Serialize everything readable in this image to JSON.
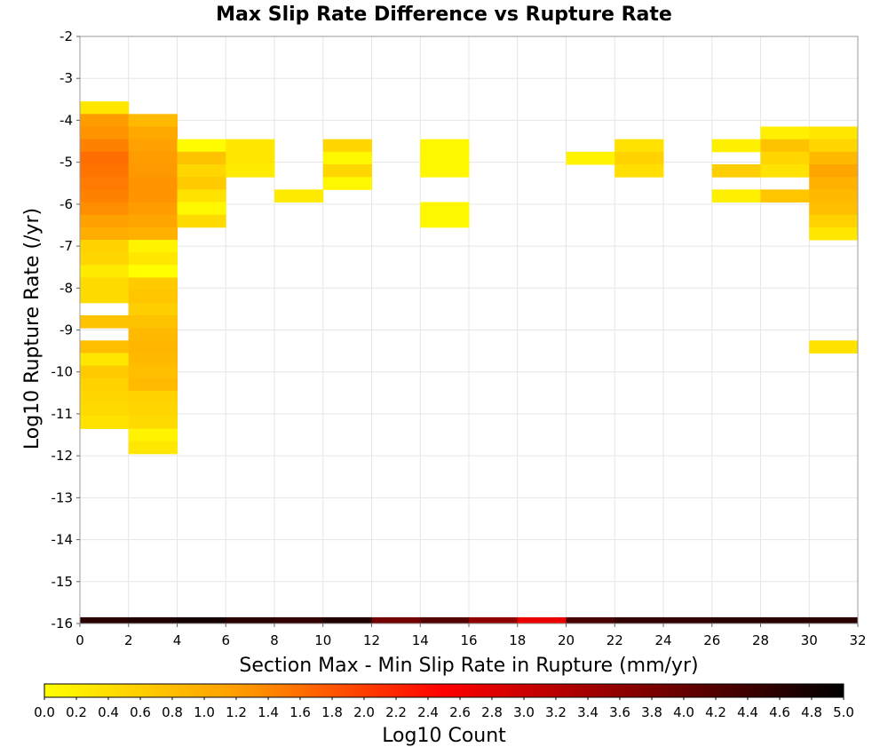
{
  "chart_data": {
    "type": "heatmap",
    "title": "Max Slip Rate Difference vs Rupture Rate",
    "xlabel": "Section Max - Min Slip Rate in Rupture (mm/yr)",
    "ylabel": "Log10 Rupture Rate (/yr)",
    "xlim": [
      0,
      32
    ],
    "ylim": [
      -16,
      -2
    ],
    "x_ticks": [
      "0",
      "2",
      "4",
      "6",
      "8",
      "10",
      "12",
      "14",
      "16",
      "18",
      "20",
      "22",
      "24",
      "26",
      "28",
      "30",
      "32"
    ],
    "y_ticks": [
      "-16",
      "-15",
      "-14",
      "-13",
      "-12",
      "-11",
      "-10",
      "-9",
      "-8",
      "-7",
      "-6",
      "-5",
      "-4",
      "-3",
      "-2"
    ],
    "x_bin_width": 2,
    "y_bin_height": 0.3,
    "grid": true,
    "colorbar": {
      "label": "Log10 Count",
      "min": 0,
      "max": 5,
      "ticks": [
        "0.0",
        "0.2",
        "0.4",
        "0.6",
        "0.8",
        "1.0",
        "1.2",
        "1.4",
        "1.6",
        "1.8",
        "2.0",
        "2.2",
        "2.4",
        "2.6",
        "2.8",
        "3.0",
        "3.2",
        "3.4",
        "3.6",
        "3.8",
        "4.0",
        "4.2",
        "4.4",
        "4.6",
        "4.8",
        "5.0"
      ],
      "colors": [
        "#ffff00",
        "#ff9900",
        "#ff0000",
        "#800000",
        "#000000"
      ]
    },
    "cells": [
      {
        "x0": 0,
        "x1": 2,
        "y0": -3.85,
        "y1": -3.55,
        "v": 0.3
      },
      {
        "x0": 0,
        "x1": 2,
        "y0": -4.15,
        "y1": -3.85,
        "v": 1.2
      },
      {
        "x0": 0,
        "x1": 2,
        "y0": -4.45,
        "y1": -4.15,
        "v": 1.3
      },
      {
        "x0": 0,
        "x1": 2,
        "y0": -4.75,
        "y1": -4.45,
        "v": 1.45
      },
      {
        "x0": 0,
        "x1": 2,
        "y0": -5.05,
        "y1": -4.75,
        "v": 1.6
      },
      {
        "x0": 0,
        "x1": 2,
        "y0": -5.35,
        "y1": -5.05,
        "v": 1.55
      },
      {
        "x0": 0,
        "x1": 2,
        "y0": -5.65,
        "y1": -5.35,
        "v": 1.5
      },
      {
        "x0": 0,
        "x1": 2,
        "y0": -5.95,
        "y1": -5.65,
        "v": 1.45
      },
      {
        "x0": 0,
        "x1": 2,
        "y0": -6.25,
        "y1": -5.95,
        "v": 1.35
      },
      {
        "x0": 0,
        "x1": 2,
        "y0": -6.55,
        "y1": -6.25,
        "v": 1.15
      },
      {
        "x0": 0,
        "x1": 2,
        "y0": -6.85,
        "y1": -6.55,
        "v": 1.0
      },
      {
        "x0": 0,
        "x1": 2,
        "y0": -7.15,
        "y1": -6.85,
        "v": 0.55
      },
      {
        "x0": 0,
        "x1": 2,
        "y0": -7.45,
        "y1": -7.15,
        "v": 0.5
      },
      {
        "x0": 0,
        "x1": 2,
        "y0": -7.75,
        "y1": -7.45,
        "v": 0.25
      },
      {
        "x0": 0,
        "x1": 2,
        "y0": -8.05,
        "y1": -7.75,
        "v": 0.45
      },
      {
        "x0": 0,
        "x1": 2,
        "y0": -8.35,
        "y1": -8.05,
        "v": 0.45
      },
      {
        "x0": 0,
        "x1": 2,
        "y0": -8.95,
        "y1": -8.65,
        "v": 0.75
      },
      {
        "x0": 0,
        "x1": 2,
        "y0": -9.55,
        "y1": -9.25,
        "v": 0.8
      },
      {
        "x0": 0,
        "x1": 2,
        "y0": -9.85,
        "y1": -9.55,
        "v": 0.3
      },
      {
        "x0": 0,
        "x1": 2,
        "y0": -10.15,
        "y1": -9.85,
        "v": 0.65
      },
      {
        "x0": 0,
        "x1": 2,
        "y0": -10.45,
        "y1": -10.15,
        "v": 0.55
      },
      {
        "x0": 0,
        "x1": 2,
        "y0": -10.75,
        "y1": -10.45,
        "v": 0.5
      },
      {
        "x0": 0,
        "x1": 2,
        "y0": -11.05,
        "y1": -10.75,
        "v": 0.45
      },
      {
        "x0": 0,
        "x1": 2,
        "y0": -11.35,
        "y1": -11.05,
        "v": 0.35
      },
      {
        "x0": 2,
        "x1": 4,
        "y0": -4.15,
        "y1": -3.85,
        "v": 0.85
      },
      {
        "x0": 2,
        "x1": 4,
        "y0": -4.45,
        "y1": -4.15,
        "v": 1.05
      },
      {
        "x0": 2,
        "x1": 4,
        "y0": -4.75,
        "y1": -4.45,
        "v": 1.15
      },
      {
        "x0": 2,
        "x1": 4,
        "y0": -5.05,
        "y1": -4.75,
        "v": 1.2
      },
      {
        "x0": 2,
        "x1": 4,
        "y0": -5.35,
        "y1": -5.05,
        "v": 1.25
      },
      {
        "x0": 2,
        "x1": 4,
        "y0": -5.65,
        "y1": -5.35,
        "v": 1.3
      },
      {
        "x0": 2,
        "x1": 4,
        "y0": -5.95,
        "y1": -5.65,
        "v": 1.3
      },
      {
        "x0": 2,
        "x1": 4,
        "y0": -6.25,
        "y1": -5.95,
        "v": 1.2
      },
      {
        "x0": 2,
        "x1": 4,
        "y0": -6.55,
        "y1": -6.25,
        "v": 1.1
      },
      {
        "x0": 2,
        "x1": 4,
        "y0": -6.85,
        "y1": -6.55,
        "v": 0.95
      },
      {
        "x0": 2,
        "x1": 4,
        "y0": -7.15,
        "y1": -6.85,
        "v": 0.15
      },
      {
        "x0": 2,
        "x1": 4,
        "y0": -7.45,
        "y1": -7.15,
        "v": 0.3
      },
      {
        "x0": 2,
        "x1": 4,
        "y0": -7.75,
        "y1": -7.45,
        "v": 0.0
      },
      {
        "x0": 2,
        "x1": 4,
        "y0": -8.05,
        "y1": -7.75,
        "v": 0.65
      },
      {
        "x0": 2,
        "x1": 4,
        "y0": -8.35,
        "y1": -8.05,
        "v": 0.7
      },
      {
        "x0": 2,
        "x1": 4,
        "y0": -8.65,
        "y1": -8.35,
        "v": 0.6
      },
      {
        "x0": 2,
        "x1": 4,
        "y0": -8.95,
        "y1": -8.65,
        "v": 0.75
      },
      {
        "x0": 2,
        "x1": 4,
        "y0": -9.25,
        "y1": -8.95,
        "v": 0.85
      },
      {
        "x0": 2,
        "x1": 4,
        "y0": -9.55,
        "y1": -9.25,
        "v": 0.9
      },
      {
        "x0": 2,
        "x1": 4,
        "y0": -9.85,
        "y1": -9.55,
        "v": 0.85
      },
      {
        "x0": 2,
        "x1": 4,
        "y0": -10.15,
        "y1": -9.85,
        "v": 0.8
      },
      {
        "x0": 2,
        "x1": 4,
        "y0": -10.45,
        "y1": -10.15,
        "v": 0.85
      },
      {
        "x0": 2,
        "x1": 4,
        "y0": -10.75,
        "y1": -10.45,
        "v": 0.55
      },
      {
        "x0": 2,
        "x1": 4,
        "y0": -11.05,
        "y1": -10.75,
        "v": 0.5
      },
      {
        "x0": 2,
        "x1": 4,
        "y0": -11.35,
        "y1": -11.05,
        "v": 0.45
      },
      {
        "x0": 2,
        "x1": 4,
        "y0": -11.65,
        "y1": -11.35,
        "v": 0.15
      },
      {
        "x0": 2,
        "x1": 4,
        "y0": -11.95,
        "y1": -11.65,
        "v": 0.3
      },
      {
        "x0": 4,
        "x1": 6,
        "y0": -4.75,
        "y1": -4.45,
        "v": 0.05
      },
      {
        "x0": 4,
        "x1": 6,
        "y0": -5.05,
        "y1": -4.75,
        "v": 0.75
      },
      {
        "x0": 4,
        "x1": 6,
        "y0": -5.35,
        "y1": -5.05,
        "v": 0.5
      },
      {
        "x0": 4,
        "x1": 6,
        "y0": -5.65,
        "y1": -5.35,
        "v": 0.65
      },
      {
        "x0": 4,
        "x1": 6,
        "y0": -5.95,
        "y1": -5.65,
        "v": 0.35
      },
      {
        "x0": 4,
        "x1": 6,
        "y0": -6.25,
        "y1": -5.95,
        "v": 0.1
      },
      {
        "x0": 4,
        "x1": 6,
        "y0": -6.55,
        "y1": -6.25,
        "v": 0.45
      },
      {
        "x0": 6,
        "x1": 8,
        "y0": -4.75,
        "y1": -4.45,
        "v": 0.3
      },
      {
        "x0": 6,
        "x1": 8,
        "y0": -5.05,
        "y1": -4.75,
        "v": 0.3
      },
      {
        "x0": 6,
        "x1": 8,
        "y0": -5.35,
        "y1": -5.05,
        "v": 0.25
      },
      {
        "x0": 8,
        "x1": 10,
        "y0": -5.95,
        "y1": -5.65,
        "v": 0.25
      },
      {
        "x0": 10,
        "x1": 12,
        "y0": -4.75,
        "y1": -4.45,
        "v": 0.5
      },
      {
        "x0": 10,
        "x1": 12,
        "y0": -5.05,
        "y1": -4.75,
        "v": 0.1
      },
      {
        "x0": 10,
        "x1": 12,
        "y0": -5.35,
        "y1": -5.05,
        "v": 0.5
      },
      {
        "x0": 10,
        "x1": 12,
        "y0": -5.65,
        "y1": -5.35,
        "v": 0.1
      },
      {
        "x0": 14,
        "x1": 16,
        "y0": -4.75,
        "y1": -4.45,
        "v": 0.1
      },
      {
        "x0": 14,
        "x1": 16,
        "y0": -5.05,
        "y1": -4.75,
        "v": 0.1
      },
      {
        "x0": 14,
        "x1": 16,
        "y0": -5.35,
        "y1": -5.05,
        "v": 0.1
      },
      {
        "x0": 14,
        "x1": 16,
        "y0": -6.25,
        "y1": -5.95,
        "v": 0.1
      },
      {
        "x0": 14,
        "x1": 16,
        "y0": -6.55,
        "y1": -6.25,
        "v": 0.1
      },
      {
        "x0": 20,
        "x1": 22,
        "y0": -5.05,
        "y1": -4.75,
        "v": 0.15
      },
      {
        "x0": 22,
        "x1": 24,
        "y0": -4.75,
        "y1": -4.45,
        "v": 0.35
      },
      {
        "x0": 22,
        "x1": 24,
        "y0": -5.05,
        "y1": -4.75,
        "v": 0.55
      },
      {
        "x0": 22,
        "x1": 24,
        "y0": -5.35,
        "y1": -5.05,
        "v": 0.4
      },
      {
        "x0": 26,
        "x1": 28,
        "y0": -4.75,
        "y1": -4.45,
        "v": 0.2
      },
      {
        "x0": 26,
        "x1": 28,
        "y0": -5.35,
        "y1": -5.05,
        "v": 0.6
      },
      {
        "x0": 26,
        "x1": 28,
        "y0": -5.95,
        "y1": -5.65,
        "v": 0.2
      },
      {
        "x0": 28,
        "x1": 30,
        "y0": -4.45,
        "y1": -4.15,
        "v": 0.2
      },
      {
        "x0": 28,
        "x1": 30,
        "y0": -4.75,
        "y1": -4.45,
        "v": 0.75
      },
      {
        "x0": 28,
        "x1": 30,
        "y0": -5.05,
        "y1": -4.75,
        "v": 0.5
      },
      {
        "x0": 28,
        "x1": 30,
        "y0": -5.35,
        "y1": -5.05,
        "v": 0.35
      },
      {
        "x0": 28,
        "x1": 30,
        "y0": -5.95,
        "y1": -5.65,
        "v": 0.7
      },
      {
        "x0": 30,
        "x1": 32,
        "y0": -4.45,
        "y1": -4.15,
        "v": 0.3
      },
      {
        "x0": 30,
        "x1": 32,
        "y0": -4.75,
        "y1": -4.45,
        "v": 0.5
      },
      {
        "x0": 30,
        "x1": 32,
        "y0": -5.05,
        "y1": -4.75,
        "v": 0.85
      },
      {
        "x0": 30,
        "x1": 32,
        "y0": -5.35,
        "y1": -5.05,
        "v": 1.1
      },
      {
        "x0": 30,
        "x1": 32,
        "y0": -5.65,
        "y1": -5.35,
        "v": 0.95
      },
      {
        "x0": 30,
        "x1": 32,
        "y0": -5.95,
        "y1": -5.65,
        "v": 0.85
      },
      {
        "x0": 30,
        "x1": 32,
        "y0": -6.25,
        "y1": -5.95,
        "v": 0.8
      },
      {
        "x0": 30,
        "x1": 32,
        "y0": -6.55,
        "y1": -6.25,
        "v": 0.55
      },
      {
        "x0": 30,
        "x1": 32,
        "y0": -6.85,
        "y1": -6.55,
        "v": 0.3
      },
      {
        "x0": 30,
        "x1": 32,
        "y0": -9.55,
        "y1": -9.25,
        "v": 0.35
      },
      {
        "x0": 0,
        "x1": 2,
        "y0": -16.0,
        "y1": -15.85,
        "v": 4.6
      },
      {
        "x0": 2,
        "x1": 4,
        "y0": -16.0,
        "y1": -15.85,
        "v": 4.7
      },
      {
        "x0": 4,
        "x1": 6,
        "y0": -16.0,
        "y1": -15.85,
        "v": 4.8
      },
      {
        "x0": 6,
        "x1": 8,
        "y0": -16.0,
        "y1": -15.85,
        "v": 4.6
      },
      {
        "x0": 8,
        "x1": 10,
        "y0": -16.0,
        "y1": -15.85,
        "v": 4.5
      },
      {
        "x0": 10,
        "x1": 12,
        "y0": -16.0,
        "y1": -15.85,
        "v": 4.7
      },
      {
        "x0": 12,
        "x1": 14,
        "y0": -16.0,
        "y1": -15.85,
        "v": 3.9
      },
      {
        "x0": 14,
        "x1": 16,
        "y0": -16.0,
        "y1": -15.85,
        "v": 4.2
      },
      {
        "x0": 16,
        "x1": 18,
        "y0": -16.0,
        "y1": -15.85,
        "v": 3.6
      },
      {
        "x0": 18,
        "x1": 20,
        "y0": -16.0,
        "y1": -15.85,
        "v": 2.7
      },
      {
        "x0": 20,
        "x1": 22,
        "y0": -16.0,
        "y1": -15.85,
        "v": 4.3
      },
      {
        "x0": 22,
        "x1": 24,
        "y0": -16.0,
        "y1": -15.85,
        "v": 4.5
      },
      {
        "x0": 24,
        "x1": 26,
        "y0": -16.0,
        "y1": -15.85,
        "v": 4.5
      },
      {
        "x0": 26,
        "x1": 28,
        "y0": -16.0,
        "y1": -15.85,
        "v": 4.6
      },
      {
        "x0": 28,
        "x1": 30,
        "y0": -16.0,
        "y1": -15.85,
        "v": 4.6
      },
      {
        "x0": 30,
        "x1": 32,
        "y0": -16.0,
        "y1": -15.85,
        "v": 4.6
      }
    ]
  }
}
